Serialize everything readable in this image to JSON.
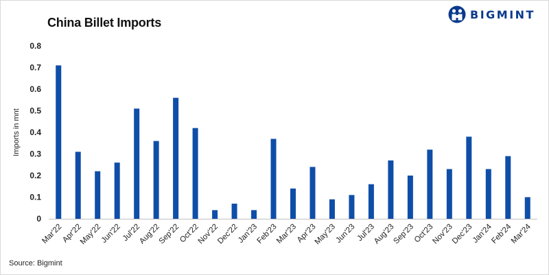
{
  "title": "China Billet Imports",
  "source": "Source: Bigmint",
  "logo": {
    "text": "BIGMINT",
    "color": "#0b3a8c"
  },
  "chart_data": {
    "type": "bar",
    "ylabel": "Imports in mnt",
    "ylim": [
      0,
      0.8
    ],
    "yticks": [
      "0",
      "0.1",
      "0.2",
      "0.3",
      "0.4",
      "0.5",
      "0.6",
      "0.7",
      "0.8"
    ],
    "bar_color": "#0f4ea8",
    "grid": false,
    "categories": [
      "Mar'22",
      "Apr'22",
      "May'22",
      "Jun'22",
      "Jul'22",
      "Aug'22",
      "Sep'22",
      "Oct'22",
      "Nov'22",
      "Dec'22",
      "Jan'23",
      "Feb'23",
      "Mar'23",
      "Apr'23",
      "May'23",
      "Jun'23",
      "Jul'23",
      "Aug'23",
      "Sep'23",
      "Oct'23",
      "Nov'23",
      "Dec'23",
      "Jan'24",
      "Feb'24",
      "Mar'24"
    ],
    "values": [
      0.71,
      0.31,
      0.22,
      0.26,
      0.51,
      0.36,
      0.56,
      0.42,
      0.04,
      0.07,
      0.04,
      0.37,
      0.14,
      0.24,
      0.09,
      0.11,
      0.16,
      0.27,
      0.2,
      0.32,
      0.23,
      0.38,
      0.23,
      0.29,
      0.1
    ]
  }
}
